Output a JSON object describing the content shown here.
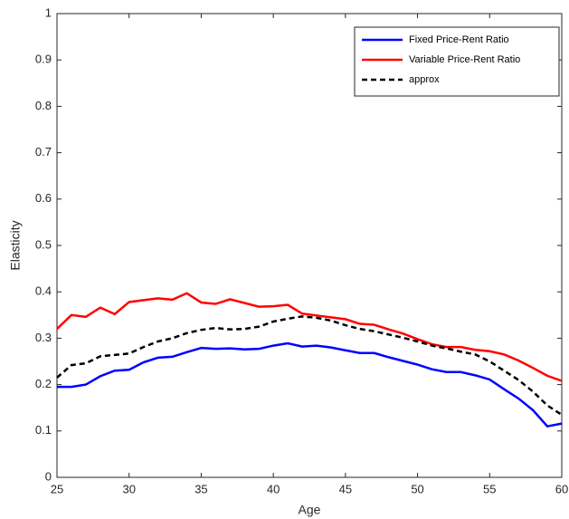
{
  "chart_data": {
    "type": "line",
    "xlabel": "Age",
    "ylabel": "Elasticity",
    "x": [
      25,
      26,
      27,
      28,
      29,
      30,
      31,
      32,
      33,
      34,
      35,
      36,
      37,
      38,
      39,
      40,
      41,
      42,
      43,
      44,
      45,
      46,
      47,
      48,
      49,
      50,
      51,
      52,
      53,
      54,
      55,
      56,
      57,
      58,
      59,
      60
    ],
    "series": [
      {
        "name": "Fixed Price-Rent Ratio",
        "color": "#0000ff",
        "dash": false,
        "values": [
          0.195,
          0.195,
          0.2,
          0.218,
          0.23,
          0.232,
          0.248,
          0.258,
          0.26,
          0.27,
          0.279,
          0.277,
          0.278,
          0.276,
          0.277,
          0.284,
          0.289,
          0.282,
          0.284,
          0.28,
          0.274,
          0.268,
          0.268,
          0.259,
          0.251,
          0.243,
          0.233,
          0.227,
          0.227,
          0.22,
          0.211,
          0.19,
          0.17,
          0.145,
          0.11,
          0.116
        ]
      },
      {
        "name": "Variable Price-Rent Ratio",
        "color": "#ff0000",
        "dash": false,
        "values": [
          0.32,
          0.35,
          0.346,
          0.366,
          0.352,
          0.378,
          0.382,
          0.386,
          0.383,
          0.397,
          0.377,
          0.374,
          0.384,
          0.376,
          0.368,
          0.369,
          0.372,
          0.353,
          0.349,
          0.345,
          0.341,
          0.331,
          0.329,
          0.319,
          0.31,
          0.298,
          0.287,
          0.281,
          0.281,
          0.275,
          0.272,
          0.265,
          0.252,
          0.236,
          0.219,
          0.208
        ]
      },
      {
        "name": "approx",
        "color": "#000000",
        "dash": true,
        "values": [
          0.215,
          0.242,
          0.246,
          0.261,
          0.264,
          0.267,
          0.281,
          0.293,
          0.3,
          0.311,
          0.318,
          0.322,
          0.319,
          0.32,
          0.325,
          0.336,
          0.342,
          0.347,
          0.344,
          0.338,
          0.328,
          0.32,
          0.315,
          0.308,
          0.301,
          0.293,
          0.284,
          0.278,
          0.271,
          0.265,
          0.25,
          0.23,
          0.21,
          0.185,
          0.155,
          0.135
        ]
      }
    ],
    "xlim": [
      25,
      60
    ],
    "xticks": [
      25,
      30,
      35,
      40,
      45,
      50,
      55,
      60
    ],
    "ylim": [
      0,
      1
    ],
    "yticks": [
      0,
      0.1,
      0.2,
      0.3,
      0.4,
      0.5,
      0.6,
      0.7,
      0.8,
      0.9,
      1
    ],
    "grid": false,
    "legend": "northeast"
  }
}
